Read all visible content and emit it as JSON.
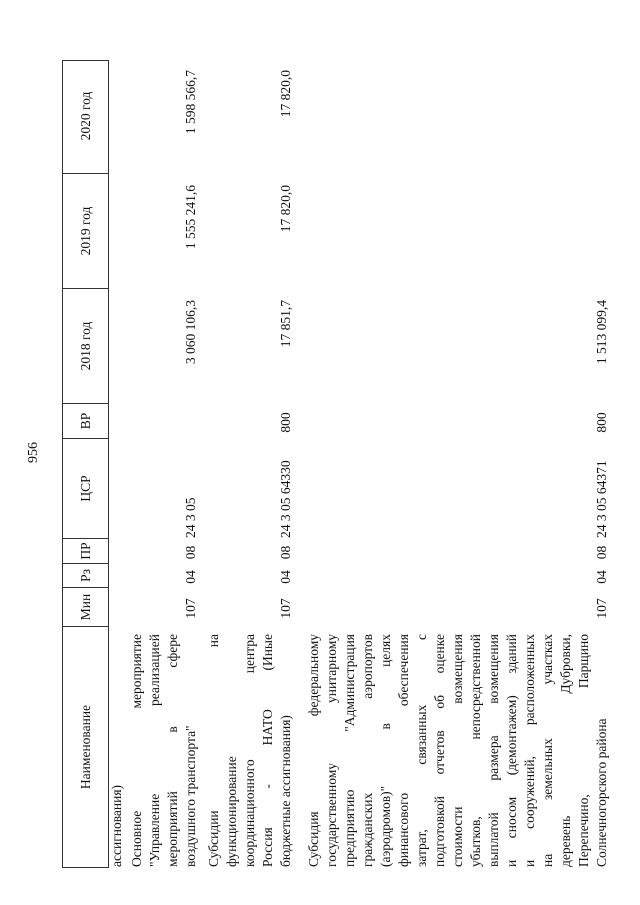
{
  "page_number": "956",
  "header": [
    "Наименование",
    "Мин",
    "Рз",
    "ПР",
    "ЦСР",
    "ВР",
    "2018 год",
    "2019 год",
    "2020 год"
  ],
  "continuation": "ассигнования)",
  "rows": [
    {
      "name_lines": [
        "Основное мероприятие",
        "\"Управление реализацией",
        "мероприятий в сфере",
        "воздушного транспорта\""
      ],
      "min": "107",
      "rz": "04",
      "pr": "08",
      "csr": "24 3 05",
      "vr": "",
      "y2018": "3 060 106,3",
      "y2019": "1 555 241,6",
      "y2020": "1 598 566,7"
    },
    {
      "name_lines": [
        "Субсидии на",
        "функционирование",
        "координационного центра",
        "Россия - НАТО (Иные",
        "бюджетные ассигнования)"
      ],
      "min": "107",
      "rz": "04",
      "pr": "08",
      "csr": "24 3 05 64330",
      "vr": "800",
      "y2018": "17 851,7",
      "y2019": "17 820,0",
      "y2020": "17 820,0"
    },
    {
      "name_lines": [
        "Субсидия федеральному",
        "государственному унитарному",
        "предприятию \"Администрация",
        "гражданских аэропортов",
        "(аэродромов)\" в целях",
        "финансового обеспечения",
        "затрат, связанных с",
        "подготовкой отчетов об оценке",
        "стоимости возмещения",
        "убытков, непосредственной",
        "выплатой размера возмещения",
        "и сносом (демонтажем) зданий",
        "и сооружений, расположенных",
        "на земельных участках",
        "деревень Дубровки,",
        "Перепечино, Парщино",
        "Солнечногорского района"
      ],
      "min": "107",
      "rz": "04",
      "pr": "08",
      "csr": "24 3 05 64371",
      "vr": "800",
      "y2018": "1 513 099,4",
      "y2019": "",
      "y2020": ""
    }
  ]
}
